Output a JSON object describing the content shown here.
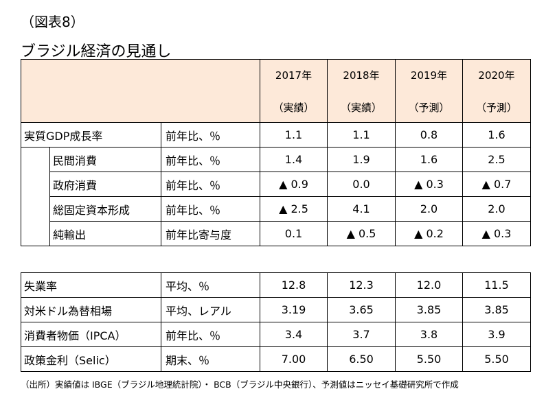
{
  "figure_label": "（図表8）",
  "title": "ブラジル経済の見通し",
  "columns": [
    {
      "year": "2017年",
      "kind": "（実績）"
    },
    {
      "year": "2018年",
      "kind": "（実績）"
    },
    {
      "year": "2019年",
      "kind": "（予測）"
    },
    {
      "year": "2020年",
      "kind": "（予測）"
    }
  ],
  "table1": [
    {
      "label": "実質GDP成長率",
      "unit": "前年比、％",
      "values": [
        "1.1",
        "1.1",
        "0.8",
        "1.6"
      ]
    },
    {
      "label": "民間消費",
      "unit": "前年比、％",
      "values": [
        "1.4",
        "1.9",
        "1.6",
        "2.5"
      ]
    },
    {
      "label": "政府消費",
      "unit": "前年比、％",
      "values": [
        "▲ 0.9",
        "0.0",
        "▲ 0.3",
        "▲ 0.7"
      ]
    },
    {
      "label": "総固定資本形成",
      "unit": "前年比、％",
      "values": [
        "▲ 2.5",
        "4.1",
        "2.0",
        "2.0"
      ]
    },
    {
      "label": "純輸出",
      "unit": "前年比寄与度",
      "values": [
        "0.1",
        "▲ 0.5",
        "▲ 0.2",
        "▲ 0.3"
      ]
    }
  ],
  "table2": [
    {
      "label": "失業率",
      "unit": "平均、％",
      "values": [
        "12.8",
        "12.3",
        "12.0",
        "11.5"
      ]
    },
    {
      "label": "対米ドル為替相場",
      "unit": "平均、レアル",
      "values": [
        "3.19",
        "3.65",
        "3.85",
        "3.85"
      ]
    },
    {
      "label": "消費者物価（IPCA）",
      "unit": "前年比、％",
      "values": [
        "3.4",
        "3.7",
        "3.8",
        "3.9"
      ]
    },
    {
      "label": "政策金利（Selic）",
      "unit": "期末、％",
      "values": [
        "7.00",
        "6.50",
        "5.50",
        "5.50"
      ]
    }
  ],
  "source_note": "（出所）実績値は IBGE（ブラジル地理統計院）・ BCB（ブラジル中央銀行）、予測値はニッセイ基礎研究所で作成"
}
